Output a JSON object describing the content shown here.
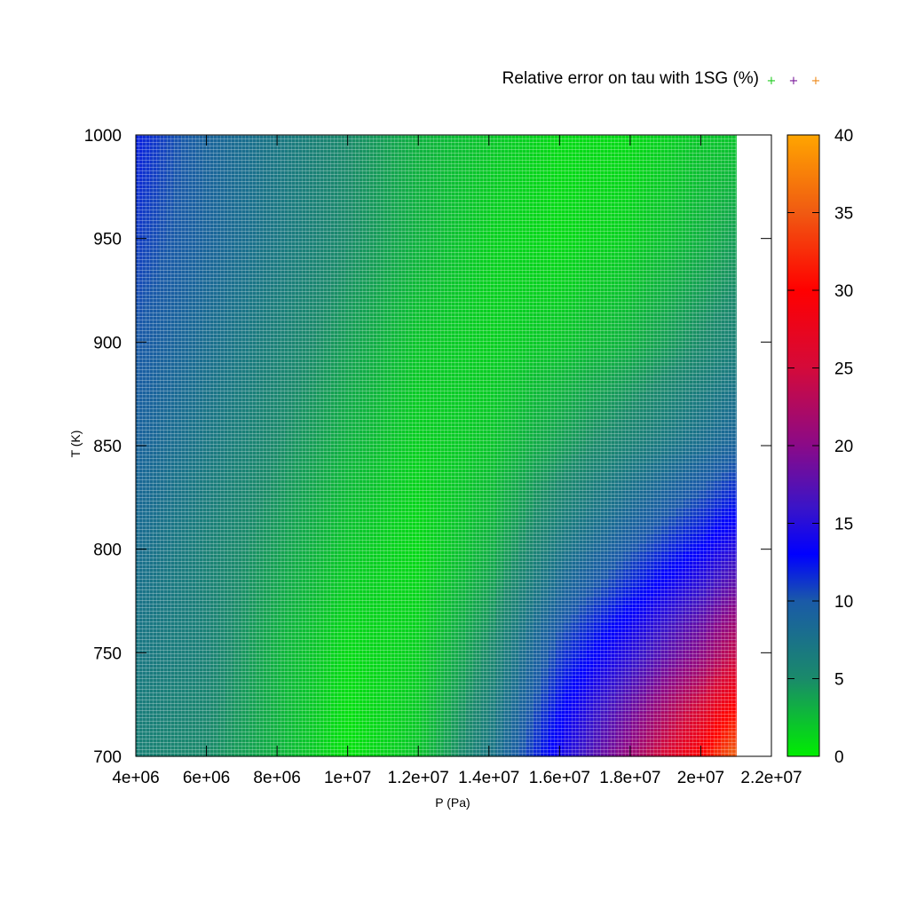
{
  "chart_data": {
    "type": "heatmap",
    "title": "Relative error on tau with 1SG (%)",
    "legend_markers": [
      {
        "symbol": "+",
        "color": "#22cc22"
      },
      {
        "symbol": "+",
        "color": "#7a1a9a"
      },
      {
        "symbol": "+",
        "color": "#ee8a1a"
      }
    ],
    "xlabel": "P (Pa)",
    "ylabel": "T (K)",
    "xlim": [
      4000000,
      22000000
    ],
    "ylim": [
      700,
      1000
    ],
    "data_x_range": [
      4000000,
      21000000
    ],
    "x_ticks": [
      {
        "value": 4000000,
        "label": "4e+06"
      },
      {
        "value": 6000000,
        "label": "6e+06"
      },
      {
        "value": 8000000,
        "label": "8e+06"
      },
      {
        "value": 10000000,
        "label": "1e+07"
      },
      {
        "value": 12000000,
        "label": "1.2e+07"
      },
      {
        "value": 14000000,
        "label": "1.4e+07"
      },
      {
        "value": 16000000,
        "label": "1.6e+07"
      },
      {
        "value": 18000000,
        "label": "1.8e+07"
      },
      {
        "value": 20000000,
        "label": "2e+07"
      },
      {
        "value": 22000000,
        "label": "2.2e+07"
      }
    ],
    "y_ticks": [
      {
        "value": 700,
        "label": "700"
      },
      {
        "value": 750,
        "label": "750"
      },
      {
        "value": 800,
        "label": "800"
      },
      {
        "value": 850,
        "label": "850"
      },
      {
        "value": 900,
        "label": "900"
      },
      {
        "value": 950,
        "label": "950"
      },
      {
        "value": 1000,
        "label": "1000"
      }
    ],
    "colorbar": {
      "range": [
        0,
        40
      ],
      "ticks": [
        {
          "value": 0,
          "label": "0"
        },
        {
          "value": 5,
          "label": "5"
        },
        {
          "value": 10,
          "label": "10"
        },
        {
          "value": 15,
          "label": "15"
        },
        {
          "value": 20,
          "label": "20"
        },
        {
          "value": 25,
          "label": "25"
        },
        {
          "value": 30,
          "label": "30"
        },
        {
          "value": 35,
          "label": "35"
        },
        {
          "value": 40,
          "label": "40"
        }
      ],
      "gradient": [
        {
          "value": 0,
          "color": "#00ee00"
        },
        {
          "value": 5,
          "color": "#1a8a6a"
        },
        {
          "value": 10,
          "color": "#1a5aa8"
        },
        {
          "value": 13,
          "color": "#0000ff"
        },
        {
          "value": 16,
          "color": "#3a14c8"
        },
        {
          "value": 20,
          "color": "#8a0a88"
        },
        {
          "value": 25,
          "color": "#d40a3a"
        },
        {
          "value": 30,
          "color": "#ff0000"
        },
        {
          "value": 35,
          "color": "#f05a12"
        },
        {
          "value": 40,
          "color": "#ffa500"
        }
      ]
    },
    "grid_p": [
      4000000,
      6000000,
      8000000,
      10000000,
      12000000,
      14000000,
      16000000,
      18000000,
      20000000,
      21000000
    ],
    "grid_t": [
      700,
      750,
      800,
      850,
      900,
      950,
      1000
    ],
    "z_values": [
      [
        6,
        5,
        3,
        0.5,
        2,
        7,
        14,
        21,
        30,
        36
      ],
      [
        7,
        6,
        3,
        1,
        1.5,
        5,
        11,
        15,
        20,
        24
      ],
      [
        8,
        6,
        4,
        2,
        1,
        3,
        7,
        10,
        13,
        15
      ],
      [
        9,
        7,
        5,
        3,
        1.5,
        2,
        4,
        6,
        8,
        9
      ],
      [
        10,
        8,
        6,
        4,
        2,
        1.5,
        2,
        3,
        5,
        6
      ],
      [
        11,
        9,
        7,
        5,
        3,
        1.5,
        1,
        1.5,
        3,
        4
      ],
      [
        12,
        9,
        7,
        5,
        3,
        2,
        1,
        1,
        2,
        2
      ]
    ],
    "grid_lines": "off"
  }
}
